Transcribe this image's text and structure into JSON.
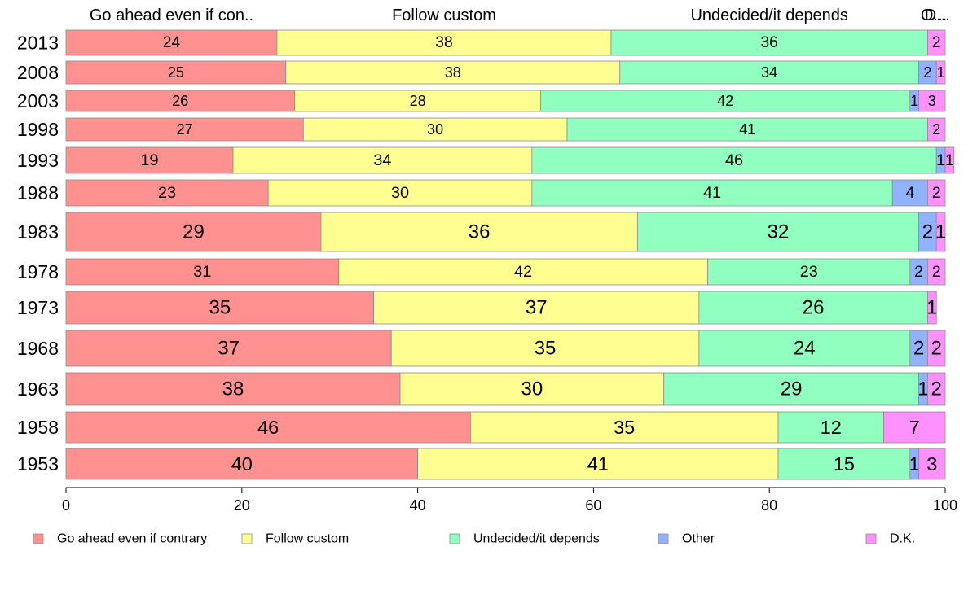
{
  "chart_data": {
    "type": "bar",
    "orientation": "horizontal",
    "stacked": true,
    "categories": [
      "2013",
      "2008",
      "2003",
      "1998",
      "1993",
      "1988",
      "1983",
      "1978",
      "1973",
      "1968",
      "1963",
      "1958",
      "1953"
    ],
    "series": [
      {
        "name": "Go ahead even if contrary",
        "color": "#ff9191",
        "values": [
          24,
          25,
          26,
          27,
          19,
          23,
          29,
          31,
          35,
          37,
          38,
          46,
          40
        ]
      },
      {
        "name": "Follow custom",
        "color": "#ffff91",
        "values": [
          38,
          38,
          28,
          30,
          34,
          30,
          36,
          42,
          37,
          35,
          30,
          35,
          41
        ]
      },
      {
        "name": "Undecided/it depends",
        "color": "#91ffbf",
        "values": [
          36,
          34,
          42,
          41,
          46,
          41,
          32,
          23,
          26,
          24,
          29,
          12,
          15
        ]
      },
      {
        "name": "Other",
        "color": "#91b3ff",
        "values": [
          0,
          2,
          1,
          0,
          1,
          4,
          2,
          2,
          0,
          2,
          1,
          0,
          1
        ]
      },
      {
        "name": "D.K.",
        "color": "#ff91ff",
        "values": [
          2,
          1,
          3,
          2,
          1,
          2,
          1,
          2,
          1,
          2,
          2,
          7,
          3
        ]
      }
    ],
    "top_labels": [
      "Go ahead even if con..",
      "Follow custom",
      "Undecided/it depends",
      "O...",
      "D..."
    ],
    "xlim": [
      0,
      100
    ],
    "xticks": [
      0,
      20,
      40,
      60,
      80,
      100
    ],
    "legend_position": "bottom",
    "grid": false
  }
}
